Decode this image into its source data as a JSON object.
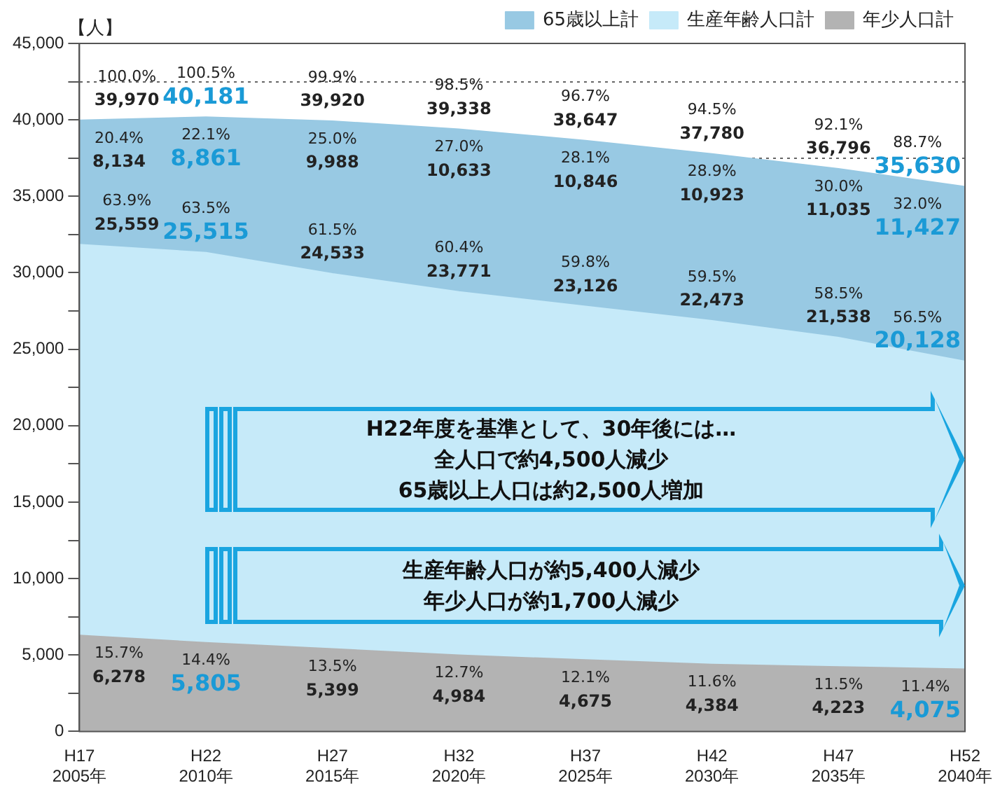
{
  "chart_data": {
    "type": "area",
    "stacked": true,
    "ylabel": "【人】",
    "categories": [
      "H17\n2005年",
      "H22\n2010年",
      "H27\n2015年",
      "H32\n2020年",
      "H37\n2025年",
      "H42\n2030年",
      "H47\n2035年",
      "H52\n2040年"
    ],
    "series": [
      {
        "name": "年少人口計",
        "color": "#b3b3b3",
        "values": [
          6278,
          5805,
          5399,
          4984,
          4675,
          4384,
          4223,
          4075
        ],
        "value_labels": [
          "15.7%\n6,278",
          "14.4%\n5,805",
          "13.5%\n5,399",
          "12.7%\n4,984",
          "12.1%\n4,675",
          "11.6%\n4,384",
          "11.5%\n4,223",
          "11.4%\n4,075"
        ]
      },
      {
        "name": "生産年齢人口計",
        "color": "#c6eaf9",
        "values": [
          25559,
          25515,
          24533,
          23771,
          23126,
          22473,
          21538,
          20128
        ],
        "value_labels": [
          "63.9%\n25,559",
          "63.5%\n25,515",
          "61.5%\n24,533",
          "60.4%\n23,771",
          "59.8%\n23,126",
          "59.5%\n22,473",
          "58.5%\n21,538",
          "56.5%\n20,128"
        ]
      },
      {
        "name": "65歳以上計",
        "color": "#98c9e3",
        "values": [
          8134,
          8861,
          9988,
          10633,
          10846,
          10923,
          11035,
          11427
        ],
        "value_labels": [
          "20.4%\n8,134",
          "22.1%\n8,861",
          "25.0%\n9,988",
          "27.0%\n10,633",
          "28.1%\n10,846",
          "28.9%\n10,923",
          "30.0%\n11,035",
          "32.0%\n11,427"
        ]
      }
    ],
    "totals": [
      "100.0%\n39,970",
      "100.5%\n40,181",
      "99.9%\n39,920",
      "98.5%\n39,338",
      "96.7%\n38,647",
      "94.5%\n37,780",
      "92.1%\n36,796",
      "88.7%\n35,630"
    ],
    "ylim": [
      0,
      45000
    ],
    "yticks": [
      {
        "value": 0,
        "label": "0"
      },
      {
        "value": 2500,
        "label": null
      },
      {
        "value": 5000,
        "label": "5,000"
      },
      {
        "value": 7500,
        "label": null
      },
      {
        "value": 10000,
        "label": "10,000"
      },
      {
        "value": 12500,
        "label": null
      },
      {
        "value": 15000,
        "label": "15,000"
      },
      {
        "value": 17500,
        "label": null
      },
      {
        "value": 20000,
        "label": "20,000"
      },
      {
        "value": 22500,
        "label": null
      },
      {
        "value": 25000,
        "label": "25,000"
      },
      {
        "value": 27500,
        "label": null
      },
      {
        "value": 30000,
        "label": "30,000"
      },
      {
        "value": 32500,
        "label": null
      },
      {
        "value": 35000,
        "label": "35,000"
      },
      {
        "value": 37500,
        "label": null
      },
      {
        "value": 40000,
        "label": "40,000"
      },
      {
        "value": 42500,
        "label": null
      },
      {
        "value": 45000,
        "label": "45,000"
      }
    ],
    "grid": "y",
    "legend": "top right",
    "marker": "none",
    "annotations": [
      "H22年度を基準として、30年後には…",
      "全人口で約4,500人減少",
      "65歳以上人口は約2,500人増加",
      "生産年齢人口が約5,400人減少",
      "年少人口が約1,700人減少"
    ]
  }
}
